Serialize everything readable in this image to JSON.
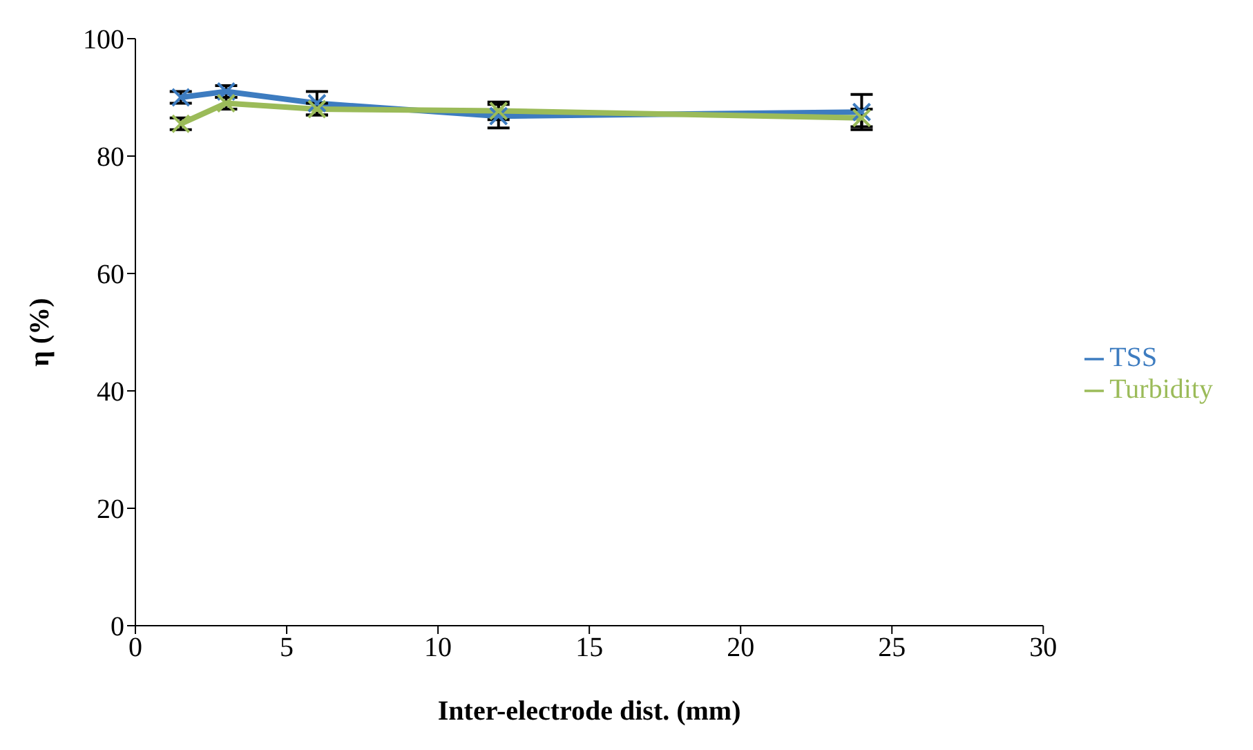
{
  "chart_data": {
    "type": "line",
    "xlabel": "Inter-electrode dist. (mm)",
    "ylabel": "η (%)",
    "x": [
      1.5,
      3,
      6,
      12,
      24
    ],
    "series": [
      {
        "name": "TSS",
        "color": "#3d7cc0",
        "values": [
          90,
          91,
          89,
          86.8,
          87.5
        ],
        "errors": [
          1,
          1,
          2,
          2,
          3
        ]
      },
      {
        "name": "Turbidity",
        "color": "#9bbb59",
        "values": [
          85.5,
          89,
          88,
          87.7,
          86.5
        ],
        "errors": [
          1,
          1,
          1,
          1.5,
          1.5
        ]
      }
    ],
    "xlim": [
      0,
      30
    ],
    "xticks": [
      0,
      5,
      10,
      15,
      20,
      25,
      30
    ],
    "ylim": [
      0,
      100
    ],
    "yticks": [
      0,
      20,
      40,
      60,
      80,
      100
    ],
    "grid": false,
    "legend": "right",
    "marker": "cross",
    "line_style": "solid"
  }
}
